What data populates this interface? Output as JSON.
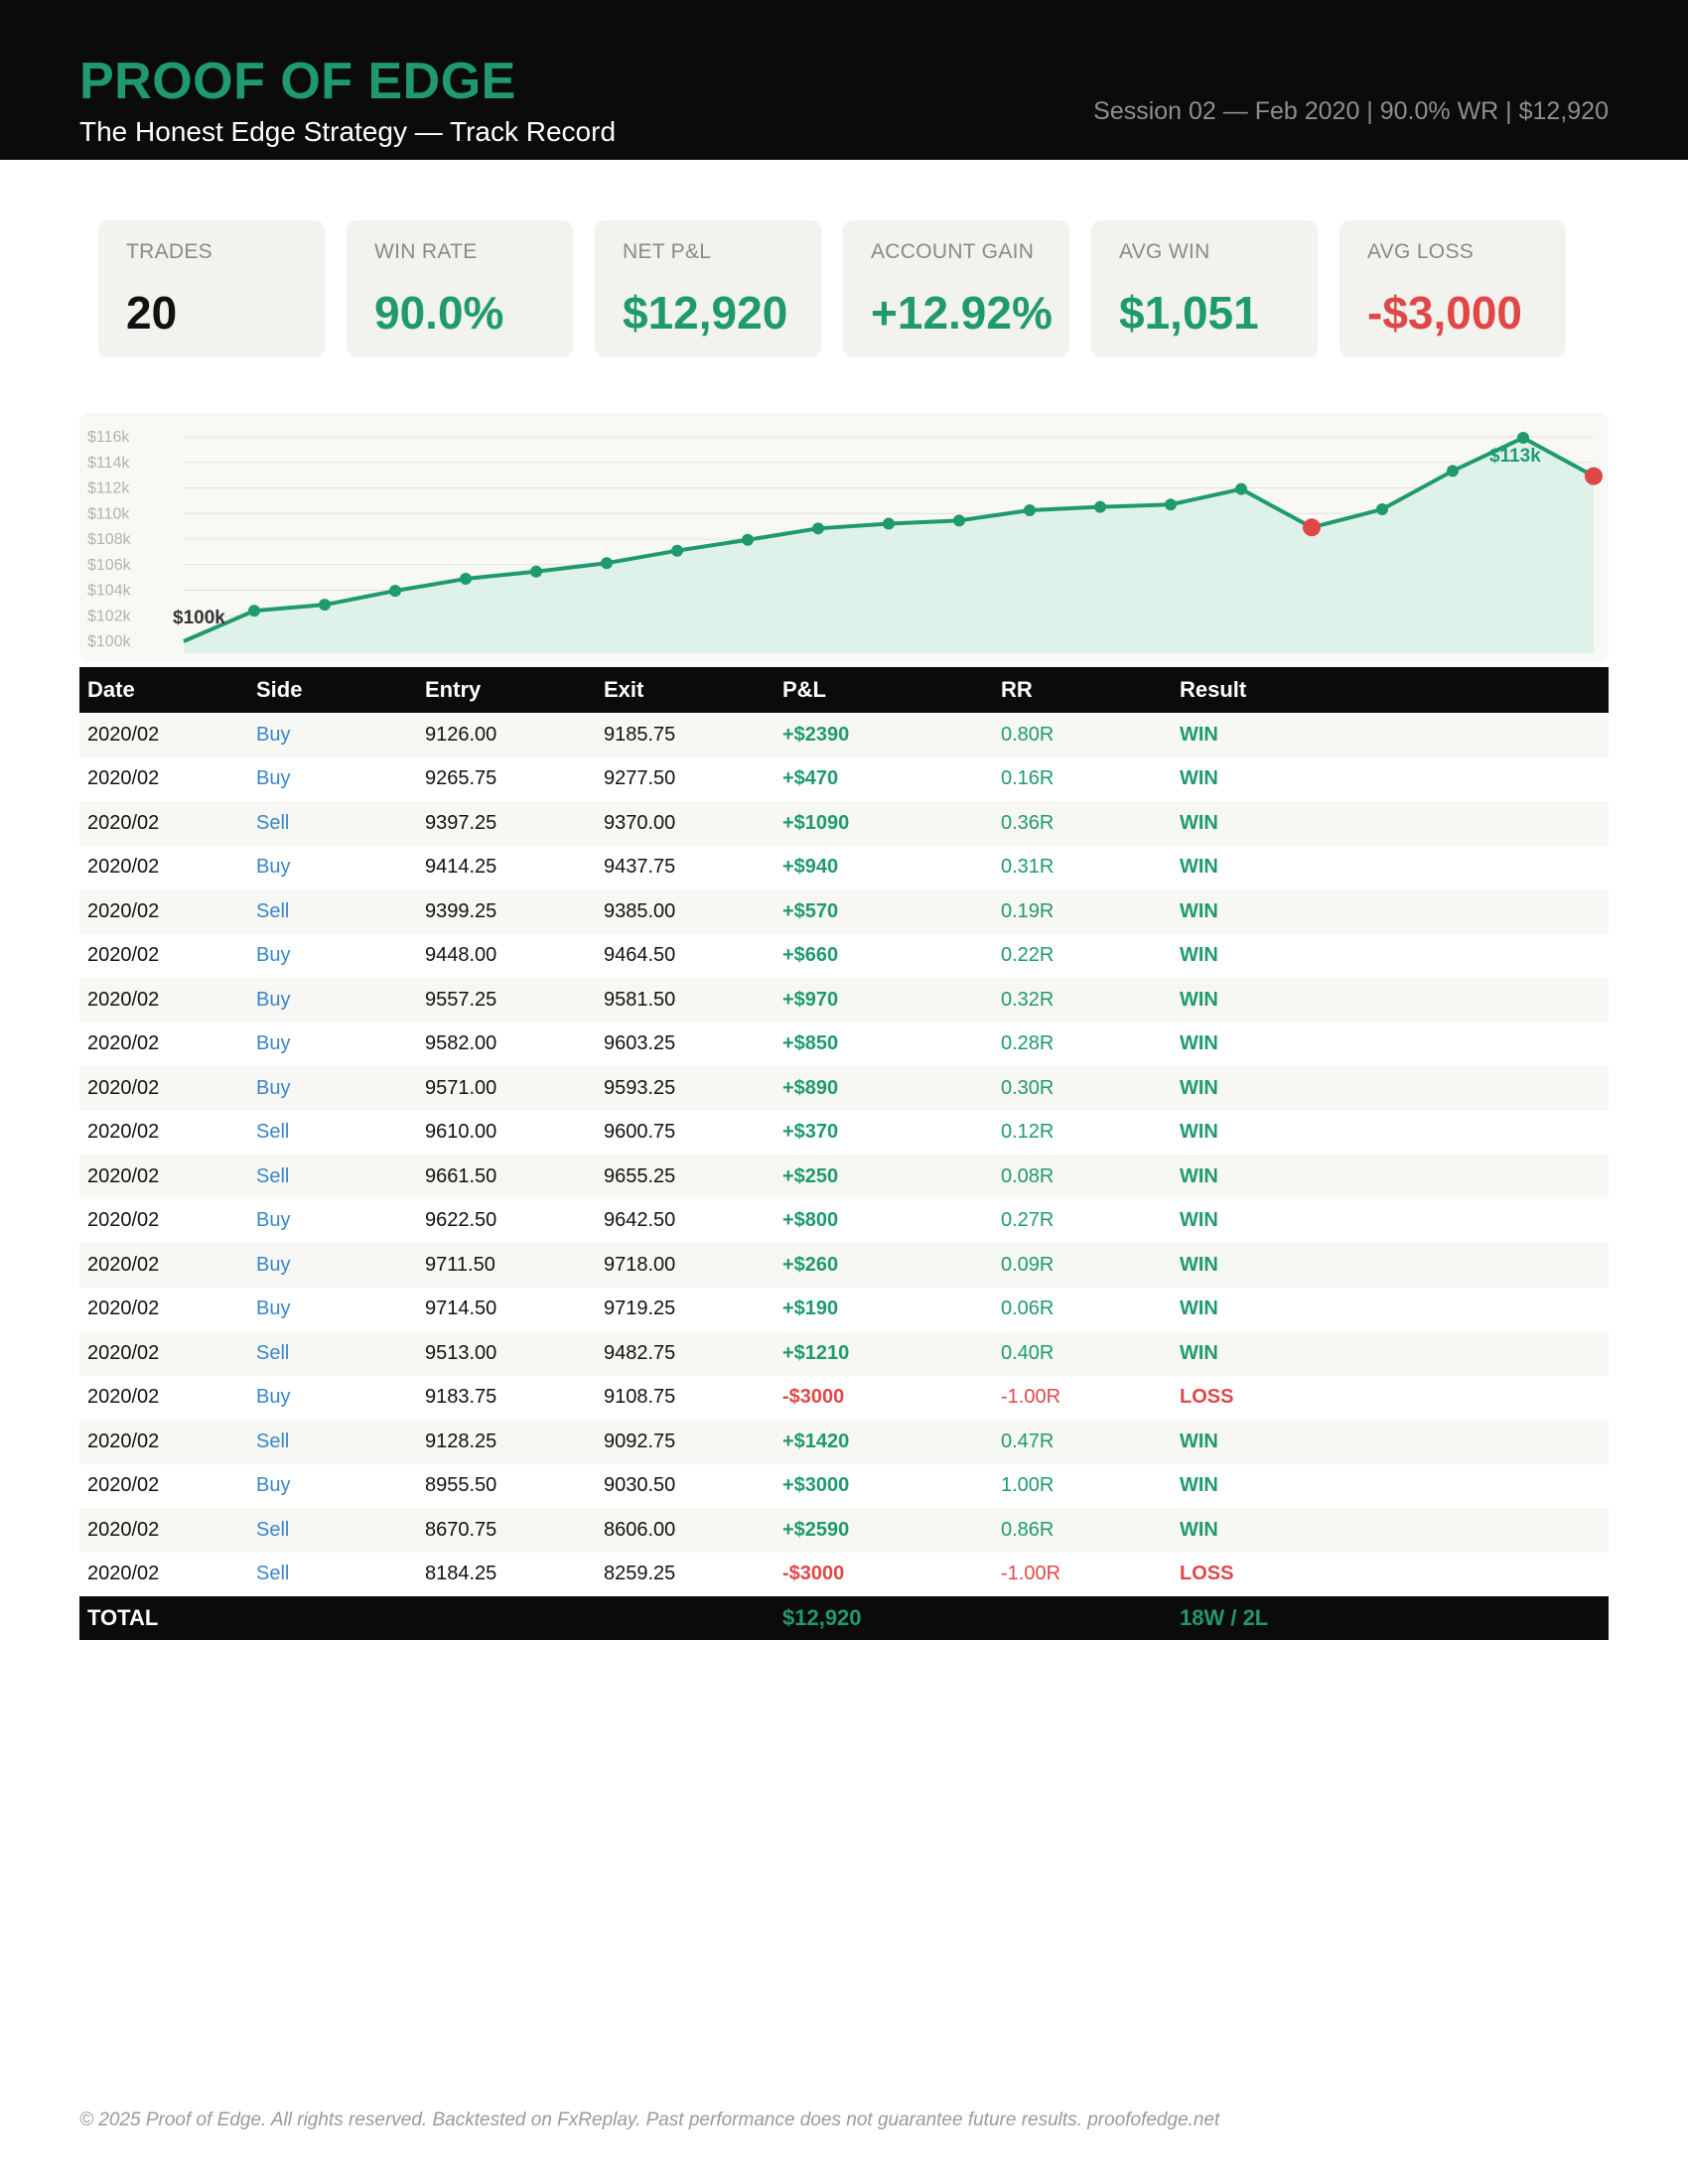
{
  "header": {
    "brand": "PROOF OF EDGE",
    "subtitle": "The Honest Edge Strategy — Track Record",
    "session": "Session 02 — Feb 2020  |  90.0% WR  |  $12,920"
  },
  "cards": [
    {
      "label": "TRADES",
      "value": "20",
      "color": "#111111"
    },
    {
      "label": "WIN RATE",
      "value": "90.0%",
      "color": "#1f9a6f"
    },
    {
      "label": "NET P&L",
      "value": "$12,920",
      "color": "#1f9a6f"
    },
    {
      "label": "ACCOUNT GAIN",
      "value": "+12.92%",
      "color": "#1f9a6f"
    },
    {
      "label": "AVG WIN",
      "value": "$1,051",
      "color": "#1f9a6f"
    },
    {
      "label": "AVG LOSS",
      "value": "-$3,000",
      "color": "#e04848"
    }
  ],
  "chart_data": {
    "type": "area",
    "y_ticks": [
      "$100k",
      "$102k",
      "$104k",
      "$106k",
      "$108k",
      "$110k",
      "$112k",
      "$114k",
      "$116k"
    ],
    "ylim": [
      100000,
      116000
    ],
    "start_label": "$100k",
    "end_label": "$113k",
    "x": [
      0,
      1,
      2,
      3,
      4,
      5,
      6,
      7,
      8,
      9,
      10,
      11,
      12,
      13,
      14,
      15,
      16,
      17,
      18,
      19,
      20
    ],
    "values": [
      100000,
      102390,
      102860,
      103950,
      104890,
      105460,
      106120,
      107090,
      107940,
      108830,
      109200,
      109450,
      110250,
      110510,
      110700,
      111910,
      108910,
      110330,
      113330,
      115920,
      112920
    ],
    "loss_points": [
      16,
      20
    ],
    "colors": {
      "line": "#1f9a6f",
      "fill": "#dff2ea",
      "loss": "#e04848",
      "grid": "#e2e2de"
    },
    "grid": true
  },
  "table": {
    "headers": [
      "Date",
      "Side",
      "Entry",
      "Exit",
      "P&L",
      "RR",
      "Result"
    ],
    "rows": [
      {
        "date": "2020/02",
        "side": "Buy",
        "entry": "9126.00",
        "exit": "9185.75",
        "pnl": "+$2390",
        "rr": "0.80R",
        "result": "WIN"
      },
      {
        "date": "2020/02",
        "side": "Buy",
        "entry": "9265.75",
        "exit": "9277.50",
        "pnl": "+$470",
        "rr": "0.16R",
        "result": "WIN"
      },
      {
        "date": "2020/02",
        "side": "Sell",
        "entry": "9397.25",
        "exit": "9370.00",
        "pnl": "+$1090",
        "rr": "0.36R",
        "result": "WIN"
      },
      {
        "date": "2020/02",
        "side": "Buy",
        "entry": "9414.25",
        "exit": "9437.75",
        "pnl": "+$940",
        "rr": "0.31R",
        "result": "WIN"
      },
      {
        "date": "2020/02",
        "side": "Sell",
        "entry": "9399.25",
        "exit": "9385.00",
        "pnl": "+$570",
        "rr": "0.19R",
        "result": "WIN"
      },
      {
        "date": "2020/02",
        "side": "Buy",
        "entry": "9448.00",
        "exit": "9464.50",
        "pnl": "+$660",
        "rr": "0.22R",
        "result": "WIN"
      },
      {
        "date": "2020/02",
        "side": "Buy",
        "entry": "9557.25",
        "exit": "9581.50",
        "pnl": "+$970",
        "rr": "0.32R",
        "result": "WIN"
      },
      {
        "date": "2020/02",
        "side": "Buy",
        "entry": "9582.00",
        "exit": "9603.25",
        "pnl": "+$850",
        "rr": "0.28R",
        "result": "WIN"
      },
      {
        "date": "2020/02",
        "side": "Buy",
        "entry": "9571.00",
        "exit": "9593.25",
        "pnl": "+$890",
        "rr": "0.30R",
        "result": "WIN"
      },
      {
        "date": "2020/02",
        "side": "Sell",
        "entry": "9610.00",
        "exit": "9600.75",
        "pnl": "+$370",
        "rr": "0.12R",
        "result": "WIN"
      },
      {
        "date": "2020/02",
        "side": "Sell",
        "entry": "9661.50",
        "exit": "9655.25",
        "pnl": "+$250",
        "rr": "0.08R",
        "result": "WIN"
      },
      {
        "date": "2020/02",
        "side": "Buy",
        "entry": "9622.50",
        "exit": "9642.50",
        "pnl": "+$800",
        "rr": "0.27R",
        "result": "WIN"
      },
      {
        "date": "2020/02",
        "side": "Buy",
        "entry": "9711.50",
        "exit": "9718.00",
        "pnl": "+$260",
        "rr": "0.09R",
        "result": "WIN"
      },
      {
        "date": "2020/02",
        "side": "Buy",
        "entry": "9714.50",
        "exit": "9719.25",
        "pnl": "+$190",
        "rr": "0.06R",
        "result": "WIN"
      },
      {
        "date": "2020/02",
        "side": "Sell",
        "entry": "9513.00",
        "exit": "9482.75",
        "pnl": "+$1210",
        "rr": "0.40R",
        "result": "WIN"
      },
      {
        "date": "2020/02",
        "side": "Buy",
        "entry": "9183.75",
        "exit": "9108.75",
        "pnl": "-$3000",
        "rr": "-1.00R",
        "result": "LOSS"
      },
      {
        "date": "2020/02",
        "side": "Sell",
        "entry": "9128.25",
        "exit": "9092.75",
        "pnl": "+$1420",
        "rr": "0.47R",
        "result": "WIN"
      },
      {
        "date": "2020/02",
        "side": "Buy",
        "entry": "8955.50",
        "exit": "9030.50",
        "pnl": "+$3000",
        "rr": "1.00R",
        "result": "WIN"
      },
      {
        "date": "2020/02",
        "side": "Sell",
        "entry": "8670.75",
        "exit": "8606.00",
        "pnl": "+$2590",
        "rr": "0.86R",
        "result": "WIN"
      },
      {
        "date": "2020/02",
        "side": "Sell",
        "entry": "8184.25",
        "exit": "8259.25",
        "pnl": "-$3000",
        "rr": "-1.00R",
        "result": "LOSS"
      }
    ],
    "total": {
      "label": "TOTAL",
      "pnl": "$12,920",
      "result": "18W / 2L"
    }
  },
  "footer": "© 2025 Proof of Edge. All rights reserved. Backtested on FxReplay. Past performance does not guarantee future results. proofofedge.net"
}
